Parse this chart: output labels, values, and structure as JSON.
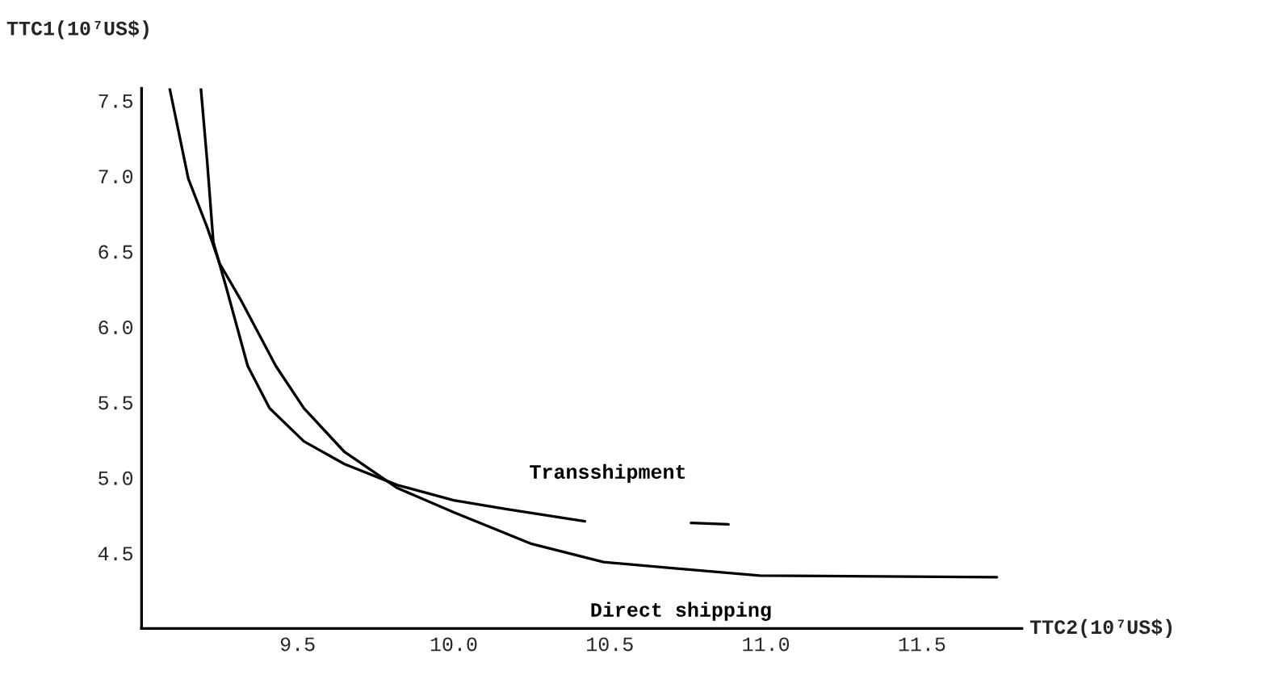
{
  "chart_data": {
    "type": "line",
    "xlabel": "TTC2(10⁷US$)",
    "ylabel": "TTC1(10⁷US$)",
    "xlim": [
      9.0,
      11.82
    ],
    "ylim": [
      4.0,
      7.58
    ],
    "xticks": [
      {
        "value": 9.5,
        "label": "9.5"
      },
      {
        "value": 10.0,
        "label": "10.0"
      },
      {
        "value": 10.5,
        "label": "10.5"
      },
      {
        "value": 11.0,
        "label": "11.0"
      },
      {
        "value": 11.5,
        "label": "11.5"
      }
    ],
    "yticks": [
      {
        "value": 4.5,
        "label": "4.5"
      },
      {
        "value": 5.0,
        "label": "5.0"
      },
      {
        "value": 5.5,
        "label": "5.5"
      },
      {
        "value": 6.0,
        "label": "6.0"
      },
      {
        "value": 6.5,
        "label": "6.5"
      },
      {
        "value": 7.0,
        "label": "7.0"
      },
      {
        "value": 7.5,
        "label": "7.5"
      }
    ],
    "grid": false,
    "legend": false,
    "marker": "none",
    "line_style": "solid",
    "series": [
      {
        "name": "Direct shipping",
        "color": "#000000",
        "x": [
          9.09,
          9.15,
          9.21,
          9.25,
          9.32,
          9.43,
          9.52,
          9.65,
          9.82,
          10.0,
          10.25,
          10.48,
          10.7,
          10.98,
          11.74
        ],
        "values": [
          7.58,
          6.98,
          6.66,
          6.42,
          6.17,
          5.74,
          5.46,
          5.17,
          4.93,
          4.77,
          4.56,
          4.44,
          4.4,
          4.35,
          4.34
        ]
      },
      {
        "name": "Transshipment",
        "color": "#000000",
        "x": [
          9.19,
          9.21,
          9.23,
          9.27,
          9.34,
          9.41,
          9.52,
          9.65,
          9.82,
          10.0,
          10.17,
          10.42,
          10.6,
          10.76,
          10.88
        ],
        "values": [
          7.58,
          7.1,
          6.56,
          6.27,
          5.74,
          5.46,
          5.24,
          5.09,
          4.95,
          4.85,
          4.79,
          4.71,
          null,
          4.7,
          4.69
        ]
      }
    ]
  }
}
